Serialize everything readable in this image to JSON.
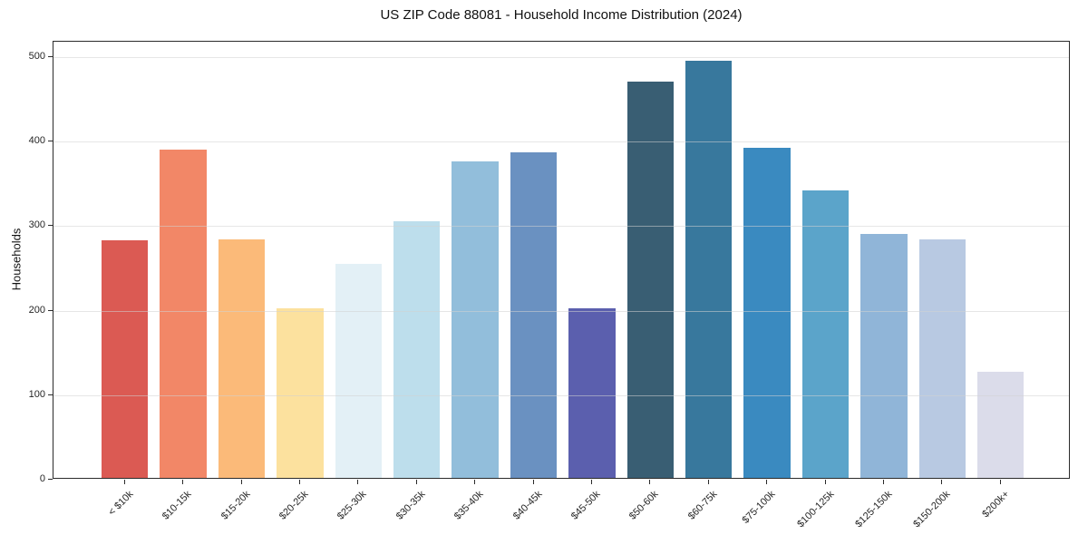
{
  "chart_data": {
    "type": "bar",
    "title": "US ZIP Code 88081 - Household Income Distribution (2024)",
    "xlabel": "",
    "ylabel": "Households",
    "categories": [
      "< $10k",
      "$10-15k",
      "$15-20k",
      "$20-25k",
      "$25-30k",
      "$30-35k",
      "$35-40k",
      "$40-45k",
      "$45-50k",
      "$50-60k",
      "$60-75k",
      "$75-100k",
      "$100-125k",
      "$125-150k",
      "$150-200k",
      "$200k+"
    ],
    "values": [
      281,
      388,
      282,
      201,
      253,
      303,
      374,
      385,
      201,
      469,
      493,
      390,
      340,
      288,
      282,
      126
    ],
    "bar_colors": [
      "#db5a53",
      "#f28767",
      "#fbba79",
      "#fce19e",
      "#e3f0f6",
      "#bddeec",
      "#92bedb",
      "#6a91c1",
      "#5b5fae",
      "#395e73",
      "#38789d",
      "#3a8ac0",
      "#5ba4ca",
      "#90b5d8",
      "#b8c9e2",
      "#dbdcea"
    ],
    "yticks": [
      0,
      100,
      200,
      300,
      400,
      500
    ],
    "ylim": [
      0,
      518
    ],
    "grid": true,
    "legend": false,
    "spine_color": "#2b2b2b",
    "background_color": "#ffffff"
  }
}
